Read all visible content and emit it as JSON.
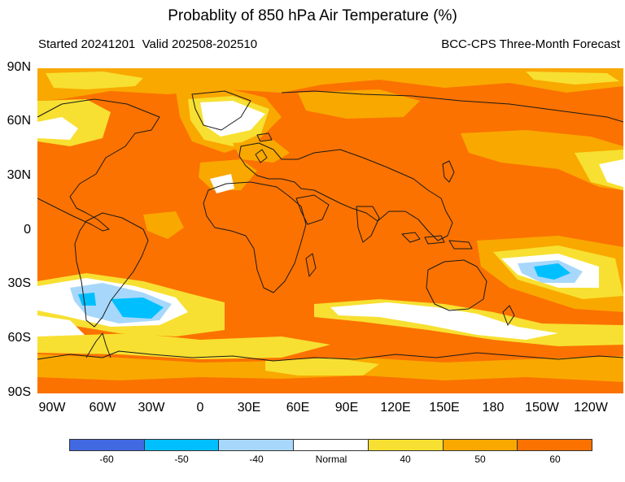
{
  "title": "Probablity of 850 hPa Air Temperature (%)",
  "subtitle_left": "Started 20241201  Valid 202508-202510",
  "subtitle_right": "BCC-CPS Three-Month Forecast",
  "lat_labels": [
    "90N",
    "60N",
    "30N",
    "0",
    "30S",
    "60S",
    "90S"
  ],
  "lon_labels": [
    "90W",
    "60W",
    "30W",
    "0",
    "30E",
    "60E",
    "90E",
    "120E",
    "150E",
    "180",
    "150W",
    "120W"
  ],
  "colorbar": {
    "colors": [
      "#4169e1",
      "#00bfff",
      "#a7d8fb",
      "#ffffff",
      "#f7e031",
      "#f9a800",
      "#fb7200"
    ],
    "labels": [
      "-60",
      "-50",
      "-40",
      "Normal",
      "40",
      "50",
      "60"
    ]
  },
  "map_colors": {
    "background": "#fb7200",
    "light_orange": "#f9a800",
    "yellow": "#f7e031",
    "white": "#ffffff",
    "pale_blue": "#a7d8fb",
    "sky_blue": "#00bfff",
    "coast": "#1a1a1a"
  }
}
